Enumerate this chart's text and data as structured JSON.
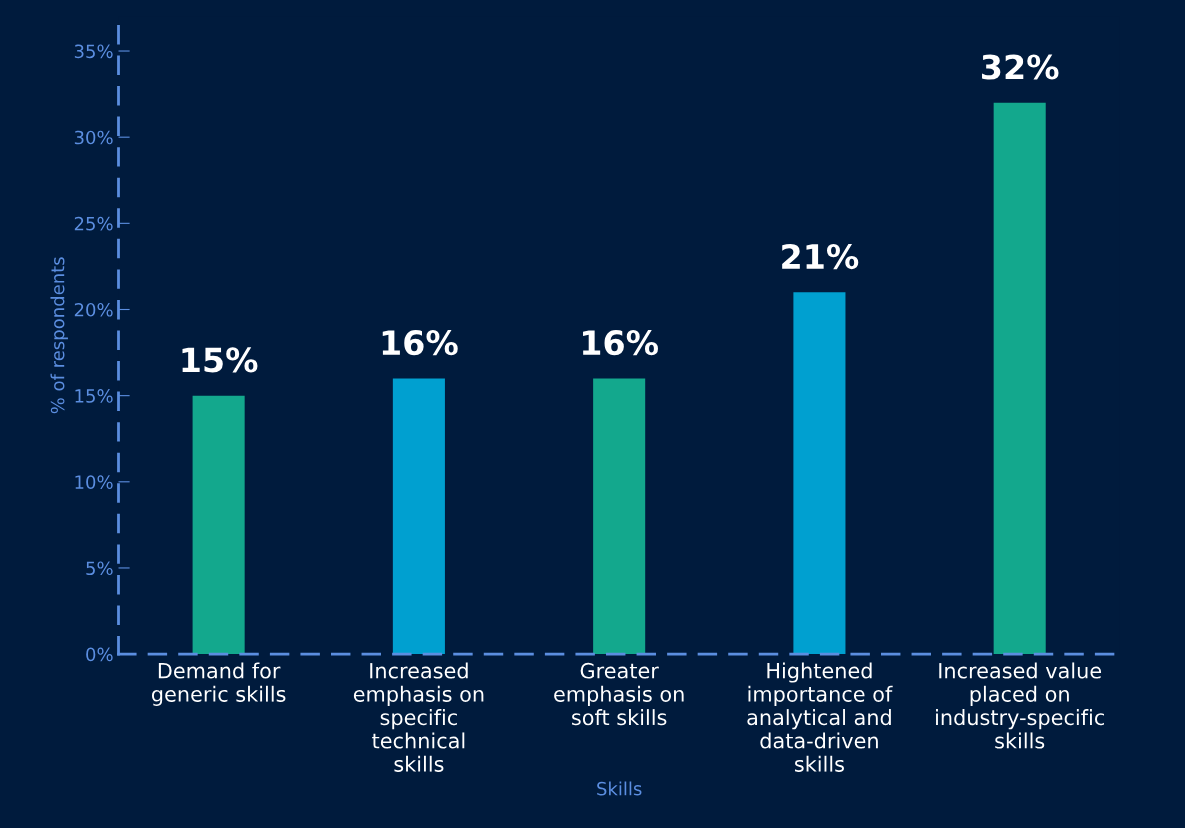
{
  "chart_data": {
    "type": "bar",
    "categories": [
      "Demand for generic skills",
      "Increased emphasis on specific technical skills",
      "Greater emphasis on soft skills",
      "Hightened importance of analytical and data-driven skills",
      "Increased value placed on industry-specific skills"
    ],
    "values": [
      15,
      16,
      16,
      21,
      32
    ],
    "colors": [
      "#13a88d",
      "#00a0d0",
      "#13a88d",
      "#00a0d0",
      "#13a88d"
    ],
    "value_labels": [
      "15%",
      "16%",
      "16%",
      "21%",
      "32%"
    ],
    "xlabel": "Skills",
    "ylabel": "% of respondents",
    "ylim": [
      0,
      37
    ],
    "yticks": [
      {
        "value": 0,
        "label": "0%"
      },
      {
        "value": 5,
        "label": "5%"
      },
      {
        "value": 10,
        "label": "10%"
      },
      {
        "value": 15,
        "label": "15%"
      },
      {
        "value": 20,
        "label": "20%"
      },
      {
        "value": 25,
        "label": "25%"
      },
      {
        "value": 30,
        "label": "30%"
      },
      {
        "value": 35,
        "label": "35%"
      }
    ],
    "grid": false,
    "legend": false
  }
}
